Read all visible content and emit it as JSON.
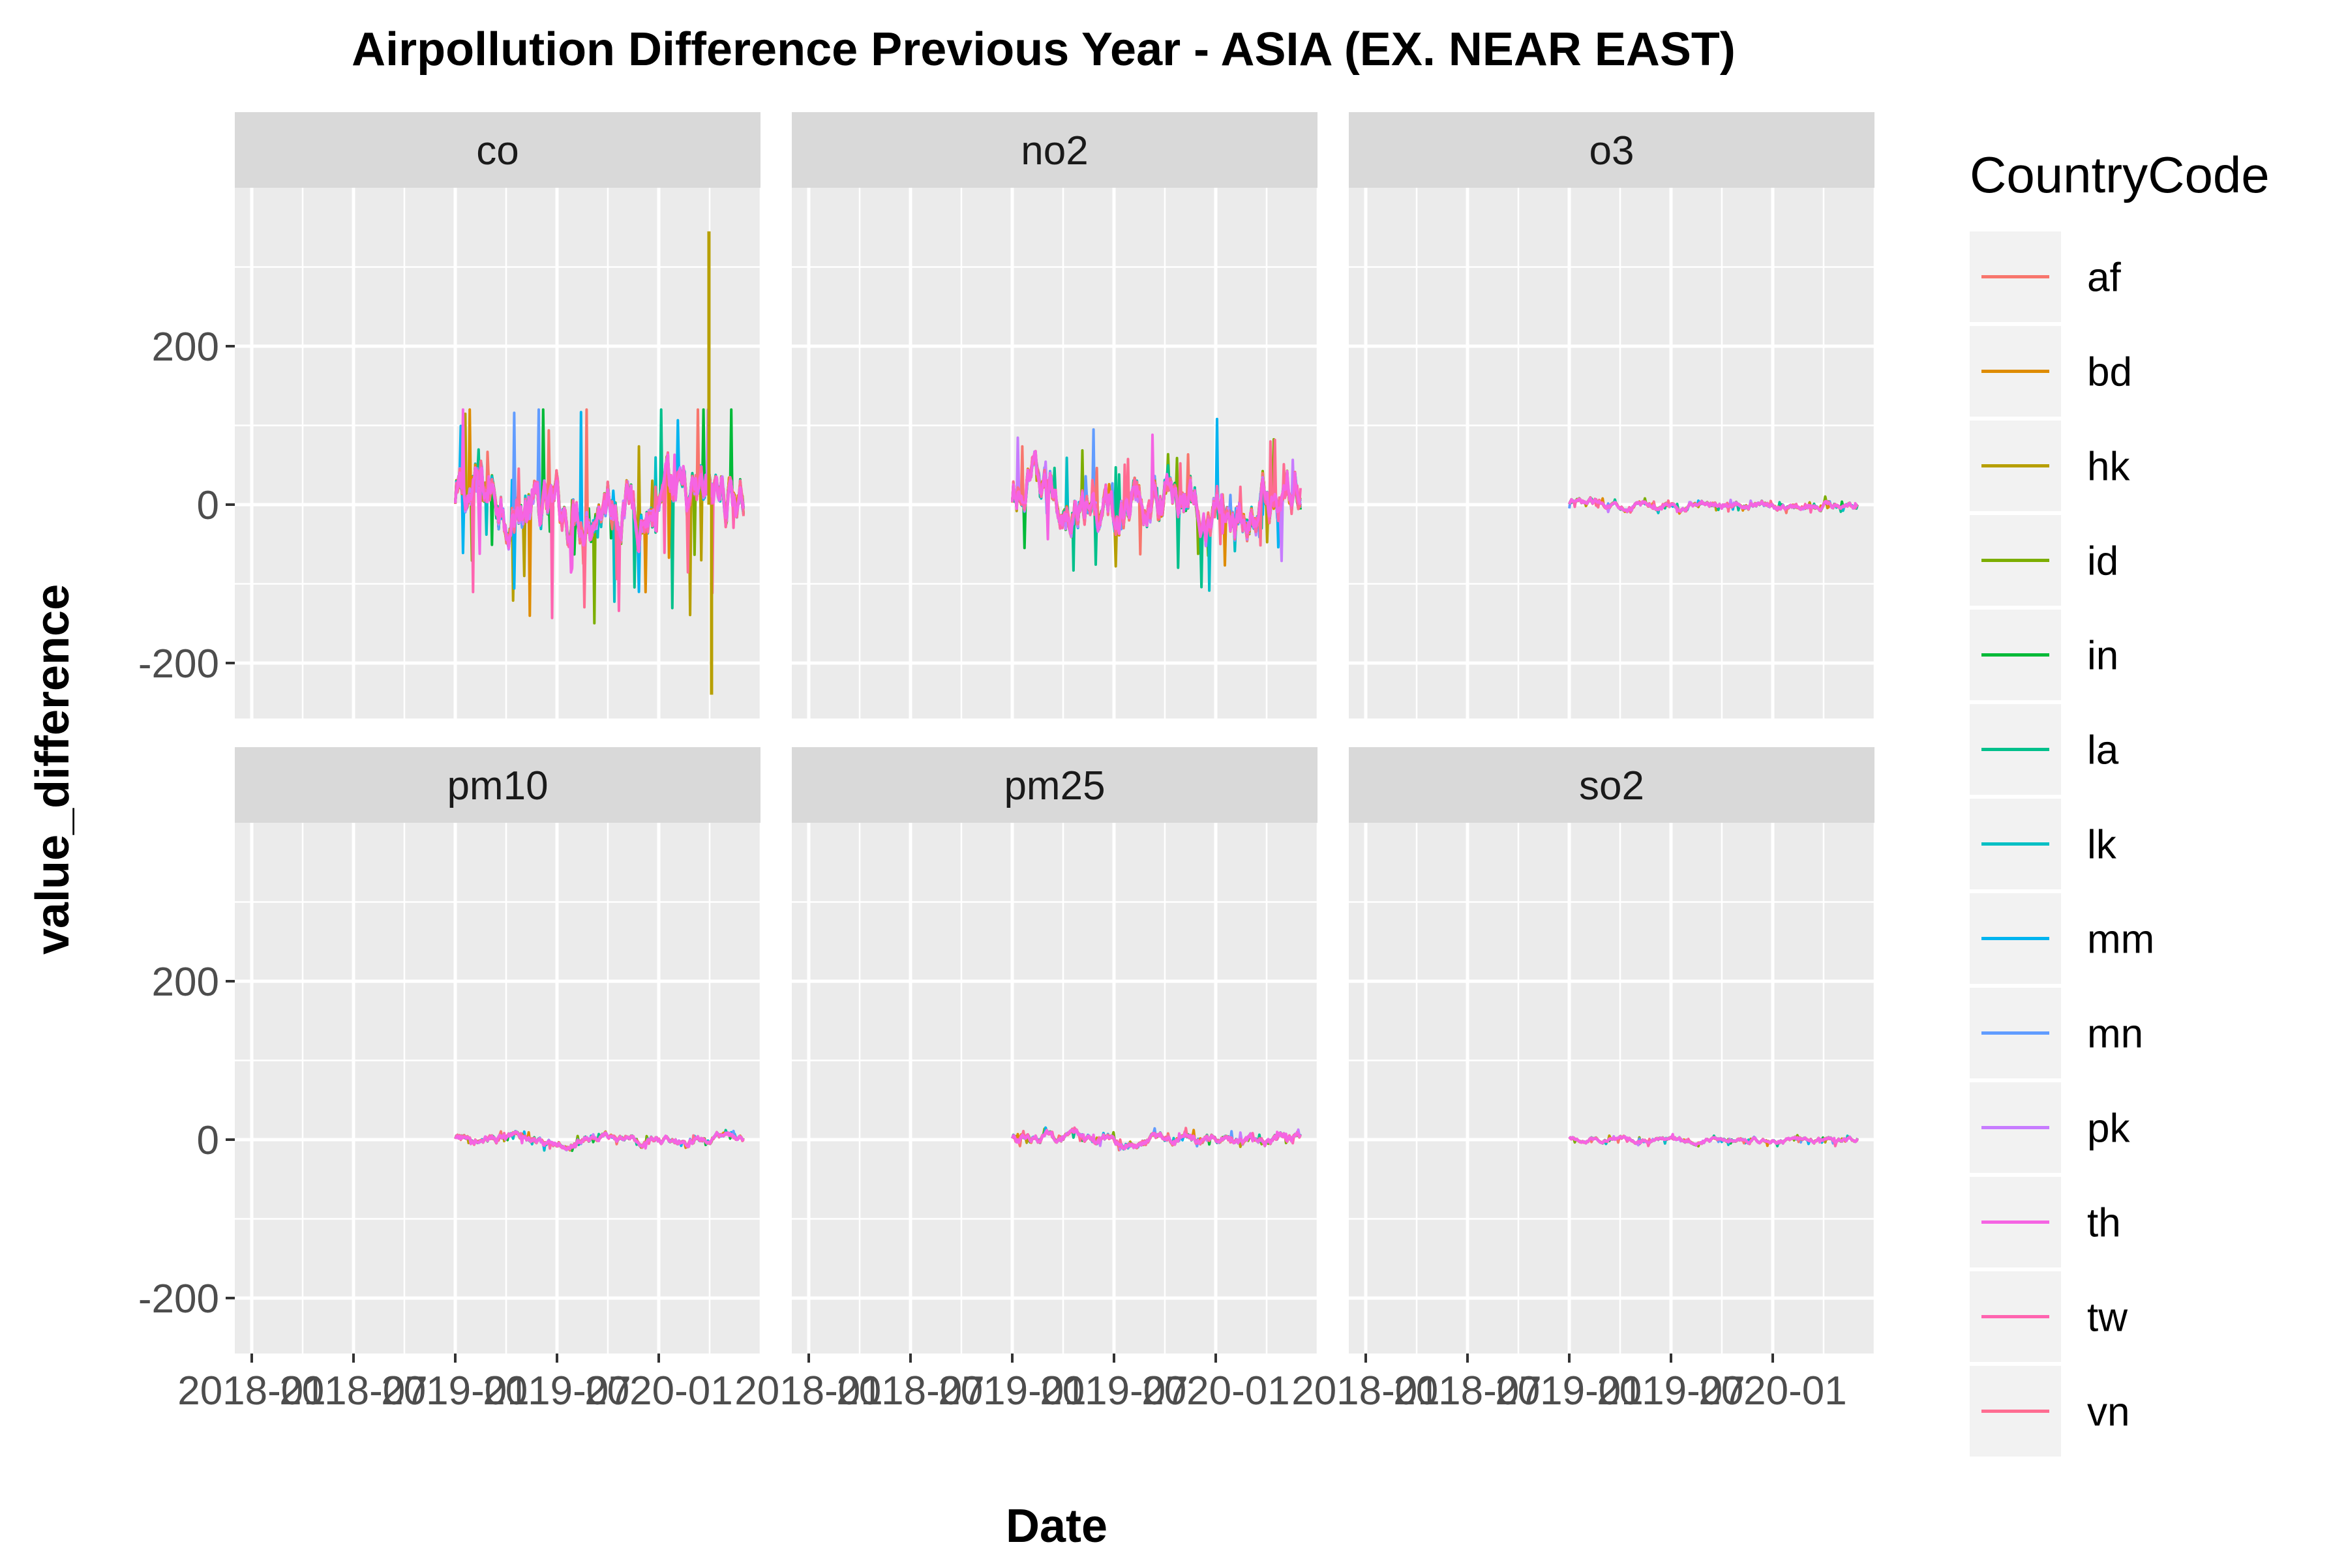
{
  "chart_data": {
    "type": "line",
    "title": "Airpollution Difference Previous Year - ASIA (EX. NEAR EAST)",
    "xlabel": "Date",
    "ylabel": "value_difference",
    "x_tick_labels": [
      "2018-01",
      "2018-07",
      "2019-01",
      "2019-07",
      "2020-01"
    ],
    "y_ticks": [
      -200,
      0,
      200
    ],
    "ylim": [
      -270,
      400
    ],
    "xlim": [
      "2017-12",
      "2020-07"
    ],
    "grid": true,
    "legend": {
      "title": "CountryCode",
      "position": "right",
      "entries": [
        {
          "name": "af",
          "color": "#F8766D"
        },
        {
          "name": "bd",
          "color": "#DE8C00"
        },
        {
          "name": "hk",
          "color": "#B79F00"
        },
        {
          "name": "id",
          "color": "#7CAE00"
        },
        {
          "name": "in",
          "color": "#00BA38"
        },
        {
          "name": "la",
          "color": "#00C08B"
        },
        {
          "name": "lk",
          "color": "#00BFC4"
        },
        {
          "name": "mm",
          "color": "#00B4F0"
        },
        {
          "name": "mn",
          "color": "#619CFF"
        },
        {
          "name": "pk",
          "color": "#C77CFF"
        },
        {
          "name": "th",
          "color": "#F564E3"
        },
        {
          "name": "tw",
          "color": "#FF64B0"
        },
        {
          "name": "vn",
          "color": "#FF6C91"
        }
      ]
    },
    "facets": [
      {
        "name": "co",
        "x_start": "2019-01",
        "x_end": "2020-06",
        "baseline": 0,
        "amplitude": 45,
        "spike_range": [
          -240,
          345
        ],
        "series_min": -180,
        "series_max": 120
      },
      {
        "name": "no2",
        "x_start": "2019-01",
        "x_end": "2020-06",
        "baseline": 0,
        "amplitude": 40,
        "spike_range": [
          -150,
          160
        ],
        "series_min": -150,
        "series_max": 160
      },
      {
        "name": "o3",
        "x_start": "2019-01",
        "x_end": "2020-06",
        "baseline": 0,
        "amplitude": 6,
        "spike_range": [
          -15,
          12
        ],
        "series_min": -15,
        "series_max": 12
      },
      {
        "name": "pm10",
        "x_start": "2019-01",
        "x_end": "2020-06",
        "baseline": 0,
        "amplitude": 7,
        "spike_range": [
          -15,
          12
        ],
        "series_min": -15,
        "series_max": 12
      },
      {
        "name": "pm25",
        "x_start": "2019-01",
        "x_end": "2020-06",
        "baseline": 0,
        "amplitude": 8,
        "spike_range": [
          -18,
          15
        ],
        "series_min": -18,
        "series_max": 15
      },
      {
        "name": "so2",
        "x_start": "2019-01",
        "x_end": "2020-06",
        "baseline": 0,
        "amplitude": 4,
        "spike_range": [
          -10,
          8
        ],
        "series_min": -10,
        "series_max": 8
      }
    ]
  }
}
